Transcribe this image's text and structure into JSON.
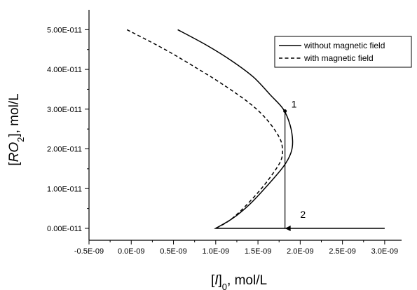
{
  "chart_data": {
    "type": "line",
    "title": "",
    "xlabel": {
      "pre": "[",
      "var": "I",
      "post": "]",
      "sub": "0",
      "unit": ", mol/L"
    },
    "ylabel": {
      "pre": "[",
      "var": "RO",
      "sub": "2",
      "post": "], mol/L"
    },
    "xlim": [
      -5e-10,
      3.2e-09
    ],
    "ylim": [
      -3e-12,
      5.5e-11
    ],
    "xticks": [
      -5e-10,
      0,
      5e-10,
      1e-09,
      1.5e-09,
      2e-09,
      2.5e-09,
      3e-09
    ],
    "xtick_labels": [
      "-0.5E-09",
      "0.0E-09",
      "0.5E-09",
      "1.0E-09",
      "1.5E-09",
      "2.0E-09",
      "2.5E-09",
      "3.0E-09"
    ],
    "yticks": [
      0,
      1e-11,
      2e-11,
      3e-11,
      4e-11,
      5e-11
    ],
    "ytick_labels": [
      "0.00E-011",
      "1.00E-011",
      "2.00E-011",
      "3.00E-011",
      "4.00E-011",
      "5.00E-011"
    ],
    "legend_position": "top-right",
    "series": [
      {
        "name": "without magnetic field",
        "style": "solid",
        "color": "#000000",
        "points": [
          [
            5.5e-10,
            5e-11
          ],
          [
            9e-10,
            4.6e-11
          ],
          [
            1.2e-09,
            4.2e-11
          ],
          [
            1.45e-09,
            3.8e-11
          ],
          [
            1.65e-09,
            3.35e-11
          ],
          [
            1.8e-09,
            3e-11
          ],
          [
            1.88e-09,
            2.6e-11
          ],
          [
            1.91e-09,
            2.2e-11
          ],
          [
            1.89e-09,
            1.9e-11
          ],
          [
            1.8e-09,
            1.55e-11
          ],
          [
            1.6e-09,
            1.05e-11
          ],
          [
            1.4e-09,
            6e-12
          ],
          [
            1.2e-09,
            2.5e-12
          ],
          [
            1e-09,
            0.0
          ],
          [
            3e-09,
            0.0
          ]
        ]
      },
      {
        "name": "with magnetic field",
        "style": "dashed",
        "color": "#000000",
        "points": [
          [
            -5e-11,
            5e-11
          ],
          [
            4e-10,
            4.5e-11
          ],
          [
            8e-10,
            4e-11
          ],
          [
            1.1e-09,
            3.6e-11
          ],
          [
            1.4e-09,
            3.15e-11
          ],
          [
            1.6e-09,
            2.75e-11
          ],
          [
            1.75e-09,
            2.3e-11
          ],
          [
            1.79e-09,
            2e-11
          ],
          [
            1.77e-09,
            1.7e-11
          ],
          [
            1.65e-09,
            1.3e-11
          ],
          [
            1.5e-09,
            9e-12
          ],
          [
            1.3e-09,
            4.5e-12
          ],
          [
            1.15e-09,
            1.8e-12
          ],
          [
            1e-09,
            0.0
          ]
        ]
      }
    ],
    "annotations": [
      {
        "label": "1",
        "x": 1.82e-09,
        "y": 2.95e-11,
        "marker": true
      },
      {
        "label": "2",
        "x": 2e-09,
        "y": 3.5e-12,
        "marker": false
      }
    ],
    "arrow": {
      "from": [
        1.82e-09,
        2.95e-11
      ],
      "to": [
        1.82e-09,
        0.0
      ]
    }
  }
}
